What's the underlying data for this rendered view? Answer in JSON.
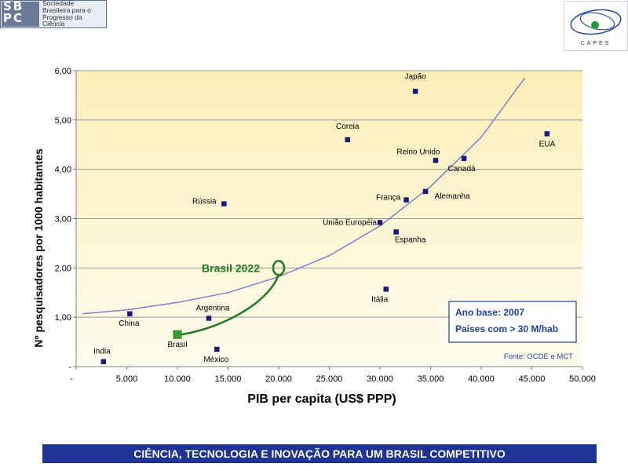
{
  "header": {
    "sbpc_letters": [
      "SB",
      "PC"
    ],
    "sbpc_name_lines": [
      "Sociedade",
      "Brasileira para o",
      "Progresso da",
      "Ciência"
    ],
    "capes_label": "CAPES"
  },
  "footer": {
    "title": "CIÊNCIA, TECNOLOGIA E INOVAÇÃO PARA UM BRASIL COMPETITIVO"
  },
  "chart_data": {
    "type": "scatter",
    "xlabel": "PIB per capita (US$ PPP)",
    "ylabel": "Nº pesquisadores por 1000 habitantes",
    "xlim": [
      0,
      50000
    ],
    "ylim": [
      0,
      6
    ],
    "x_ticks": [
      0,
      5000,
      10000,
      15000,
      20000,
      25000,
      30000,
      35000,
      40000,
      45000,
      50000
    ],
    "x_tick_labels": [
      "-",
      "5.000",
      "10.000",
      "15.000",
      "20.000",
      "25.000",
      "30.000",
      "35.000",
      "40.000",
      "45.000",
      "50.000"
    ],
    "y_ticks": [
      0,
      1,
      2,
      3,
      4,
      5,
      6
    ],
    "y_tick_labels": [
      "-",
      "1,00",
      "2,00",
      "3,00",
      "4,00",
      "5,00",
      "6,00"
    ],
    "grid": true,
    "marker_color": "#1a1a7a",
    "highlight_color": "#3a9a30",
    "curve_color": "#8080cc",
    "annotation_color": "#1f7a1f",
    "points": [
      {
        "label": "Japão",
        "x": 33500,
        "y": 5.58
      },
      {
        "label": "Coreia",
        "x": 26800,
        "y": 4.6
      },
      {
        "label": "EUA",
        "x": 46500,
        "y": 4.72
      },
      {
        "label": "Reino Unido",
        "x": 35500,
        "y": 4.18
      },
      {
        "label": "Canadá",
        "x": 38300,
        "y": 4.22
      },
      {
        "label": "França",
        "x": 32600,
        "y": 3.38
      },
      {
        "label": "Alemanha",
        "x": 34500,
        "y": 3.55
      },
      {
        "label": "Rússia",
        "x": 14600,
        "y": 3.3
      },
      {
        "label": "União Européia",
        "x": 30000,
        "y": 2.92
      },
      {
        "label": "Espanha",
        "x": 31600,
        "y": 2.73
      },
      {
        "label": "Itália",
        "x": 30600,
        "y": 1.57
      },
      {
        "label": "China",
        "x": 5300,
        "y": 1.07
      },
      {
        "label": "Argentina",
        "x": 13100,
        "y": 0.98
      },
      {
        "label": "México",
        "x": 13900,
        "y": 0.35
      },
      {
        "label": "India",
        "x": 2700,
        "y": 0.1
      },
      {
        "label": "Brasil",
        "x": 10000,
        "y": 0.65,
        "highlight": true
      }
    ],
    "trend_curve": {
      "x": [
        600,
        5000,
        10000,
        15000,
        20000,
        25000,
        30000,
        35000,
        40000,
        44300
      ],
      "y": [
        1.07,
        1.15,
        1.3,
        1.5,
        1.82,
        2.25,
        2.85,
        3.65,
        4.65,
        5.85
      ]
    },
    "brasil_2022": {
      "label": "Brasil 2022",
      "from": [
        10000,
        0.65
      ],
      "to": [
        20000,
        2.0
      ]
    },
    "legend_box": {
      "lines": [
        "Ano base: 2007",
        "Países com > 30 M/hab"
      ]
    },
    "source": "Fonte: OCDE e MCT"
  }
}
